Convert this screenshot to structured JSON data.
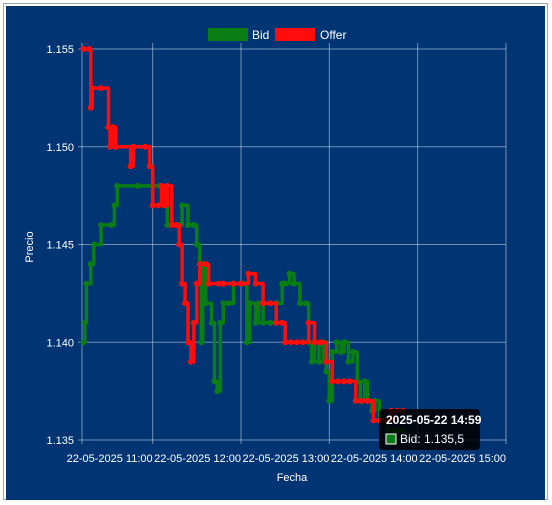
{
  "chart_data": {
    "type": "line",
    "xlabel": "Fecha",
    "ylabel": "Precio",
    "ylim": [
      1.135,
      1.155
    ],
    "yticks": [
      "1.135",
      "1.140",
      "1.145",
      "1.150",
      "1.155"
    ],
    "xlim": [
      "2025-05-22 10:12",
      "2025-05-22 15:00"
    ],
    "xticks": [
      {
        "t": "2025-05-22 11:00",
        "label": "22-05-2025 11:00"
      },
      {
        "t": "2025-05-22 12:00",
        "label": "22-05-2025 12:00"
      },
      {
        "t": "2025-05-22 13:00",
        "label": "22-05-2025 13:00"
      },
      {
        "t": "2025-05-22 14:00",
        "label": "22-05-2025 14:00"
      },
      {
        "t": "2025-05-22 15:00",
        "label": "22-05-2025 15:00"
      }
    ],
    "grid": true,
    "legend_position": "top",
    "series": [
      {
        "name": "Bid",
        "color": "#0a7d14",
        "points": [
          [
            "2025-05-22 10:13",
            1.14
          ],
          [
            "2025-05-22 10:14",
            1.141
          ],
          [
            "2025-05-22 10:15",
            1.143
          ],
          [
            "2025-05-22 10:18",
            1.144
          ],
          [
            "2025-05-22 10:20",
            1.145
          ],
          [
            "2025-05-22 10:25",
            1.146
          ],
          [
            "2025-05-22 10:32",
            1.146
          ],
          [
            "2025-05-22 10:34",
            1.147
          ],
          [
            "2025-05-22 10:36",
            1.148
          ],
          [
            "2025-05-22 10:50",
            1.148
          ],
          [
            "2025-05-22 11:05",
            1.148
          ],
          [
            "2025-05-22 11:08",
            1.147
          ],
          [
            "2025-05-22 11:10",
            1.146
          ],
          [
            "2025-05-22 11:18",
            1.146
          ],
          [
            "2025-05-22 11:20",
            1.147
          ],
          [
            "2025-05-22 11:24",
            1.146
          ],
          [
            "2025-05-22 11:28",
            1.146
          ],
          [
            "2025-05-22 11:30",
            1.145
          ],
          [
            "2025-05-22 11:32",
            1.143
          ],
          [
            "2025-05-22 11:33",
            1.14
          ],
          [
            "2025-05-22 11:34",
            1.144
          ],
          [
            "2025-05-22 11:36",
            1.142
          ],
          [
            "2025-05-22 11:40",
            1.141
          ],
          [
            "2025-05-22 11:42",
            1.138
          ],
          [
            "2025-05-22 11:44",
            1.1375
          ],
          [
            "2025-05-22 11:46",
            1.141
          ],
          [
            "2025-05-22 11:48",
            1.142
          ],
          [
            "2025-05-22 11:52",
            1.142
          ],
          [
            "2025-05-22 11:55",
            1.143
          ],
          [
            "2025-05-22 12:02",
            1.143
          ],
          [
            "2025-05-22 12:04",
            1.14
          ],
          [
            "2025-05-22 12:06",
            1.142
          ],
          [
            "2025-05-22 12:10",
            1.141
          ],
          [
            "2025-05-22 12:12",
            1.142
          ],
          [
            "2025-05-22 12:15",
            1.141
          ],
          [
            "2025-05-22 12:20",
            1.141
          ],
          [
            "2025-05-22 12:24",
            1.142
          ],
          [
            "2025-05-22 12:28",
            1.143
          ],
          [
            "2025-05-22 12:30",
            1.143
          ],
          [
            "2025-05-22 12:33",
            1.1435
          ],
          [
            "2025-05-22 12:36",
            1.143
          ],
          [
            "2025-05-22 12:40",
            1.142
          ],
          [
            "2025-05-22 12:44",
            1.142
          ],
          [
            "2025-05-22 12:46",
            1.14
          ],
          [
            "2025-05-22 12:48",
            1.139
          ],
          [
            "2025-05-22 12:50",
            1.14
          ],
          [
            "2025-05-22 12:53",
            1.139
          ],
          [
            "2025-05-22 12:56",
            1.14
          ],
          [
            "2025-05-22 12:58",
            1.1385
          ],
          [
            "2025-05-22 13:00",
            1.137
          ],
          [
            "2025-05-22 13:02",
            1.1395
          ],
          [
            "2025-05-22 13:05",
            1.14
          ],
          [
            "2025-05-22 13:08",
            1.1395
          ],
          [
            "2025-05-22 13:10",
            1.14
          ],
          [
            "2025-05-22 13:13",
            1.139
          ],
          [
            "2025-05-22 13:16",
            1.1395
          ],
          [
            "2025-05-22 13:19",
            1.138
          ],
          [
            "2025-05-22 13:21",
            1.137
          ],
          [
            "2025-05-22 13:24",
            1.138
          ],
          [
            "2025-05-22 13:26",
            1.137
          ],
          [
            "2025-05-22 13:29",
            1.1365
          ],
          [
            "2025-05-22 13:31",
            1.137
          ],
          [
            "2025-05-22 13:34",
            1.136
          ],
          [
            "2025-05-22 13:37",
            1.136
          ],
          [
            "2025-05-22 13:40",
            1.1355
          ],
          [
            "2025-05-22 13:45",
            1.1355
          ],
          [
            "2025-05-22 13:50",
            1.1355
          ]
        ]
      },
      {
        "name": "Offer",
        "color": "#ff0d0d",
        "points": [
          [
            "2025-05-22 10:13",
            1.155
          ],
          [
            "2025-05-22 10:17",
            1.155
          ],
          [
            "2025-05-22 10:18",
            1.152
          ],
          [
            "2025-05-22 10:19",
            1.153
          ],
          [
            "2025-05-22 10:25",
            1.153
          ],
          [
            "2025-05-22 10:30",
            1.151
          ],
          [
            "2025-05-22 10:31",
            1.15
          ],
          [
            "2025-05-22 10:33",
            1.151
          ],
          [
            "2025-05-22 10:35",
            1.15
          ],
          [
            "2025-05-22 10:45",
            1.149
          ],
          [
            "2025-05-22 10:47",
            1.15
          ],
          [
            "2025-05-22 10:55",
            1.15
          ],
          [
            "2025-05-22 10:58",
            1.149
          ],
          [
            "2025-05-22 11:00",
            1.147
          ],
          [
            "2025-05-22 11:04",
            1.147
          ],
          [
            "2025-05-22 11:06",
            1.148
          ],
          [
            "2025-05-22 11:08",
            1.147
          ],
          [
            "2025-05-22 11:10",
            1.148
          ],
          [
            "2025-05-22 11:13",
            1.146
          ],
          [
            "2025-05-22 11:16",
            1.146
          ],
          [
            "2025-05-22 11:18",
            1.145
          ],
          [
            "2025-05-22 11:20",
            1.143
          ],
          [
            "2025-05-22 11:22",
            1.142
          ],
          [
            "2025-05-22 11:24",
            1.14
          ],
          [
            "2025-05-22 11:26",
            1.139
          ],
          [
            "2025-05-22 11:28",
            1.141
          ],
          [
            "2025-05-22 11:30",
            1.143
          ],
          [
            "2025-05-22 11:32",
            1.144
          ],
          [
            "2025-05-22 11:36",
            1.144
          ],
          [
            "2025-05-22 11:38",
            1.143
          ],
          [
            "2025-05-22 11:45",
            1.143
          ],
          [
            "2025-05-22 11:48",
            1.143
          ],
          [
            "2025-05-22 11:55",
            1.143
          ],
          [
            "2025-05-22 12:00",
            1.143
          ],
          [
            "2025-05-22 12:05",
            1.1435
          ],
          [
            "2025-05-22 12:10",
            1.143
          ],
          [
            "2025-05-22 12:15",
            1.142
          ],
          [
            "2025-05-22 12:20",
            1.142
          ],
          [
            "2025-05-22 12:24",
            1.141
          ],
          [
            "2025-05-22 12:28",
            1.141
          ],
          [
            "2025-05-22 12:30",
            1.14
          ],
          [
            "2025-05-22 12:34",
            1.14
          ],
          [
            "2025-05-22 12:38",
            1.14
          ],
          [
            "2025-05-22 12:42",
            1.14
          ],
          [
            "2025-05-22 12:46",
            1.141
          ],
          [
            "2025-05-22 12:50",
            1.14
          ],
          [
            "2025-05-22 12:54",
            1.14
          ],
          [
            "2025-05-22 12:58",
            1.139
          ],
          [
            "2025-05-22 13:02",
            1.138
          ],
          [
            "2025-05-22 13:06",
            1.138
          ],
          [
            "2025-05-22 13:10",
            1.138
          ],
          [
            "2025-05-22 13:14",
            1.138
          ],
          [
            "2025-05-22 13:18",
            1.137
          ],
          [
            "2025-05-22 13:22",
            1.137
          ],
          [
            "2025-05-22 13:26",
            1.137
          ],
          [
            "2025-05-22 13:30",
            1.136
          ],
          [
            "2025-05-22 13:34",
            1.136
          ],
          [
            "2025-05-22 13:38",
            1.136
          ],
          [
            "2025-05-22 13:42",
            1.1365
          ],
          [
            "2025-05-22 13:46",
            1.1365
          ],
          [
            "2025-05-22 13:50",
            1.1365
          ]
        ]
      }
    ]
  },
  "tooltip": {
    "title": "2025-05-22 14:59",
    "label": "Bid: 1.135,5",
    "color": "#0a7d14"
  }
}
